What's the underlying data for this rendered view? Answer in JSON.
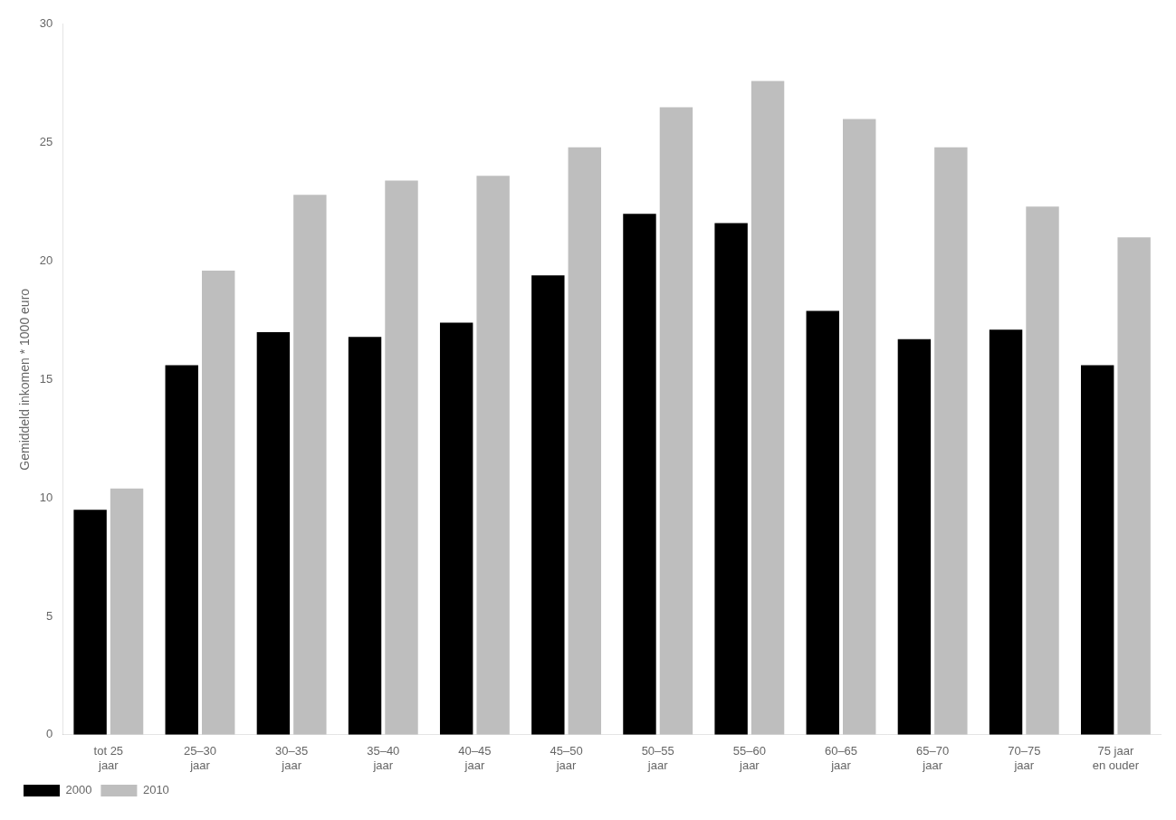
{
  "chart_data": {
    "type": "bar",
    "categories": [
      "tot 25\njaar",
      "25–30\njaar",
      "30–35\njaar",
      "35–40\njaar",
      "40–45\njaar",
      "45–50\njaar",
      "50–55\njaar",
      "55–60\njaar",
      "60–65\njaar",
      "65–70\njaar",
      "70–75\njaar",
      "75 jaar\nen ouder"
    ],
    "series": [
      {
        "name": "2000",
        "color": "#000000",
        "values": [
          9.5,
          15.6,
          17.0,
          16.8,
          17.4,
          19.4,
          22.0,
          21.6,
          17.9,
          16.7,
          17.1,
          15.6
        ]
      },
      {
        "name": "2010",
        "color": "#bebebe",
        "values": [
          10.4,
          19.6,
          22.8,
          23.4,
          23.6,
          24.8,
          26.5,
          27.6,
          26.0,
          24.8,
          22.3,
          21.0
        ]
      }
    ],
    "ylabel": "Gemiddeld inkomen * 1000 euro",
    "ylim": [
      0,
      30
    ],
    "yticks": [
      0,
      5,
      10,
      15,
      20,
      25,
      30
    ],
    "grid": false,
    "legend": "bottom"
  }
}
